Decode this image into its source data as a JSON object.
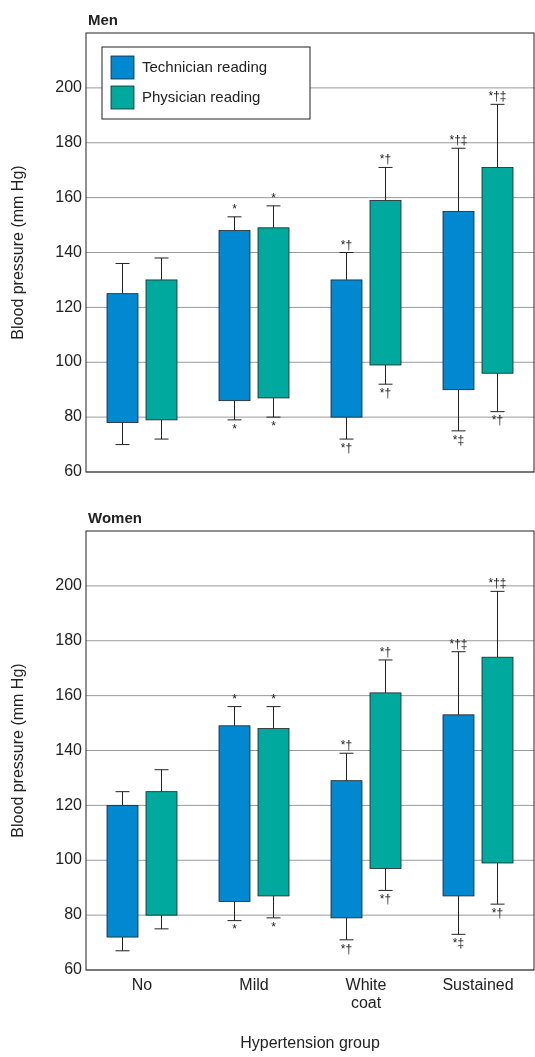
{
  "chart_data": [
    {
      "type": "bar",
      "title": "Men",
      "ylabel": "Blood pressure (mm Hg)",
      "categories": [
        null,
        null,
        null,
        null
      ],
      "ylim": [
        60,
        220
      ],
      "yticks": [
        60,
        80,
        100,
        120,
        140,
        160,
        180,
        200
      ],
      "grid": "y",
      "legend": "top left",
      "tick_labels": "y",
      "series": [
        {
          "name": "Technician reading",
          "color": "#0088d1",
          "base": [
            78,
            86,
            80,
            90
          ],
          "values": [
            47,
            62,
            50,
            65
          ],
          "errors": [
            [
              70,
              136
            ],
            [
              79,
              153
            ],
            [
              72,
              140
            ],
            [
              75,
              178
            ]
          ]
        },
        {
          "name": "Physician reading",
          "color": "#00a99d",
          "base": [
            79,
            87,
            99,
            96
          ],
          "values": [
            51,
            62,
            60,
            75
          ],
          "errors": [
            [
              72,
              138
            ],
            [
              80,
              157
            ],
            [
              92,
              171
            ],
            [
              82,
              194
            ]
          ]
        }
      ],
      "annotations": [
        "*",
        "*",
        "*",
        "*",
        "*†",
        "*†",
        "*†",
        "*†",
        "*†‡",
        "*‡",
        "*†‡",
        "*†"
      ]
    },
    {
      "type": "bar",
      "title": "Women",
      "ylabel": "Blood pressure (mm Hg)",
      "xlabel": "Hypertension group",
      "categories": [
        "No",
        "Mild",
        "White coat",
        "Sustained"
      ],
      "ylim": [
        60,
        220
      ],
      "yticks": [
        60,
        80,
        100,
        120,
        140,
        160,
        180,
        200
      ],
      "grid": "y",
      "series": [
        {
          "color": "#0088d1",
          "base": [
            72,
            85,
            79,
            87
          ],
          "values": [
            48,
            64,
            50,
            66
          ],
          "errors": [
            [
              67,
              125
            ],
            [
              78,
              156
            ],
            [
              71,
              139
            ],
            [
              73,
              176
            ]
          ]
        },
        {
          "color": "#00a99d",
          "base": [
            80,
            87,
            97,
            99
          ],
          "values": [
            45,
            61,
            64,
            75
          ],
          "errors": [
            [
              75,
              133
            ],
            [
              79,
              156
            ],
            [
              89,
              173
            ],
            [
              84,
              198
            ]
          ]
        }
      ],
      "annotations": [
        "*",
        "*",
        "*",
        "*",
        "*†",
        "*†",
        "*†",
        "*†",
        "*†‡",
        "*‡",
        "*†‡",
        "*†"
      ]
    }
  ]
}
